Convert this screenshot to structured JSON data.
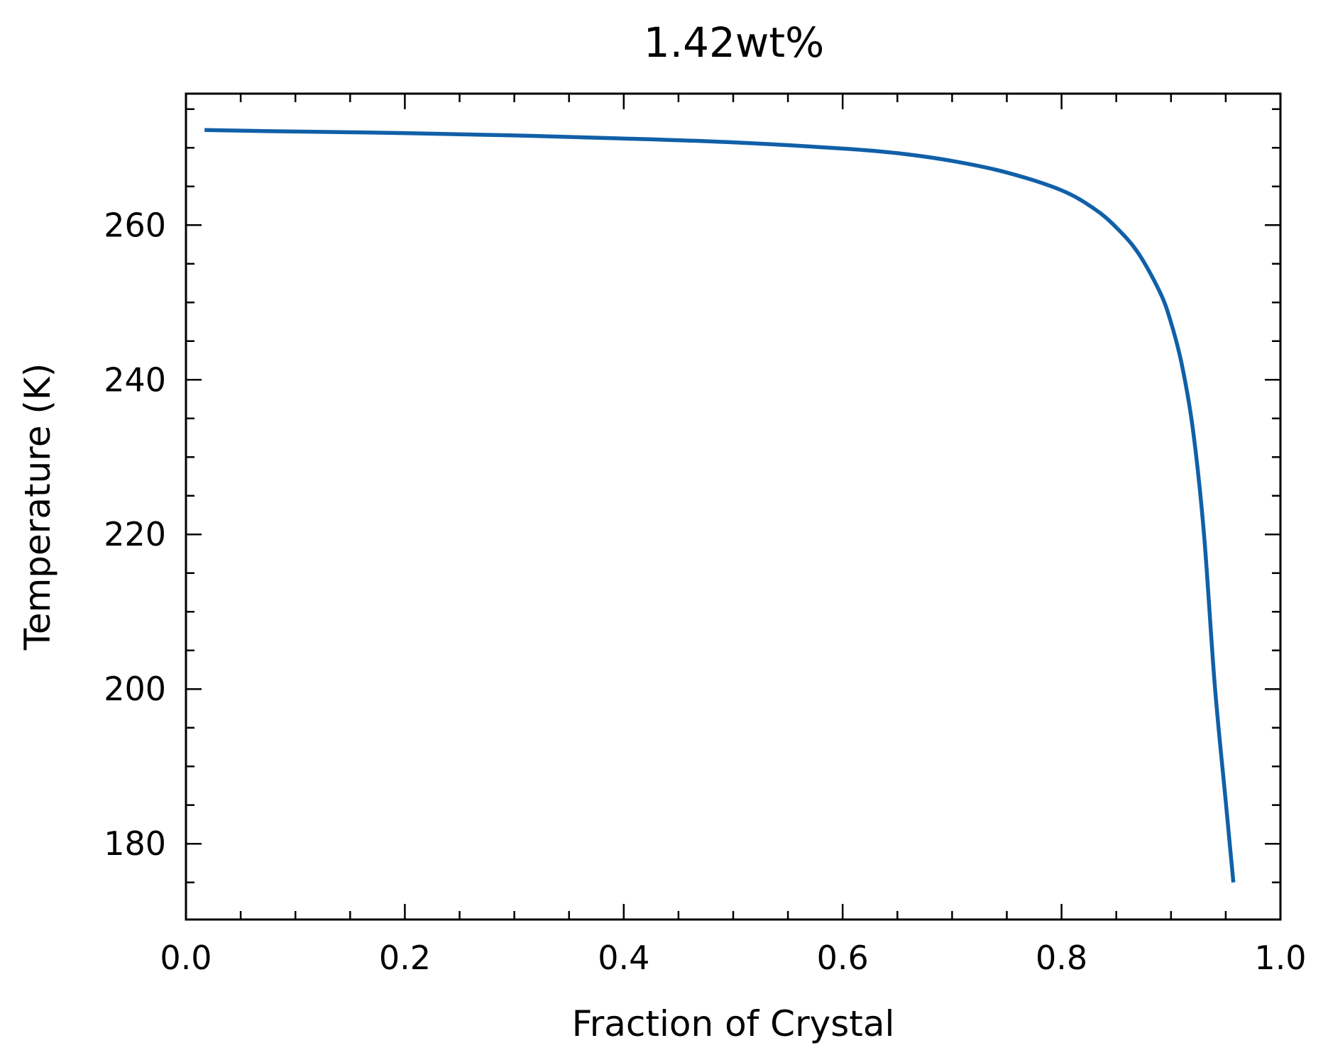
{
  "chart_data": {
    "type": "line",
    "title": "1.42wt%",
    "xlabel": "Fraction of Crystal",
    "ylabel": "Temperature (K)",
    "xlim": [
      0.0,
      1.0
    ],
    "ylim": [
      170.2,
      277.0
    ],
    "x_ticks": [
      0.0,
      0.2,
      0.4,
      0.6,
      0.8,
      1.0
    ],
    "x_tick_labels": [
      "0.0",
      "0.2",
      "0.4",
      "0.6",
      "0.8",
      "1.0"
    ],
    "y_ticks": [
      180,
      200,
      220,
      240,
      260
    ],
    "y_tick_labels": [
      "180",
      "200",
      "220",
      "240",
      "260"
    ],
    "grid": false,
    "series": [
      {
        "color": "#1060a8",
        "x": [
          0.017,
          0.1,
          0.2,
          0.3,
          0.4,
          0.5,
          0.6,
          0.65,
          0.7,
          0.75,
          0.8,
          0.83,
          0.85,
          0.87,
          0.89,
          0.9,
          0.91,
          0.92,
          0.93,
          0.94,
          0.95,
          0.957
        ],
        "y": [
          272.3,
          272.1,
          271.9,
          271.6,
          271.2,
          270.7,
          269.9,
          269.3,
          268.3,
          266.8,
          264.5,
          262.1,
          259.7,
          256.4,
          251.3,
          247.4,
          241.9,
          233.6,
          220.3,
          200.5,
          185.5,
          175.0
        ]
      }
    ]
  }
}
